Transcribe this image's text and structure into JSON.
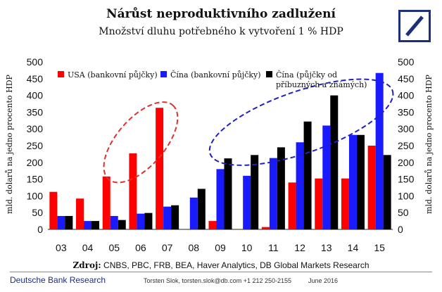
{
  "header": {
    "title": "Nárůst neproduktivního zadlužení",
    "subtitle": "Množství dluhu potřebného k vytvoření 1 % HDP"
  },
  "logo": {
    "icon": "deutsche-bank-logo-icon",
    "color": "#1c2f7a"
  },
  "chart_data": {
    "type": "bar",
    "title": "Nárůst neproduktivního zadlužení",
    "subtitle": "Množství dluhu potřebného k vytvoření 1 % HDP",
    "categories": [
      "03",
      "04",
      "05",
      "06",
      "07",
      "08",
      "09",
      "10",
      "11",
      "12",
      "13",
      "14",
      "15"
    ],
    "ylabel": "mld. dolarů na jedno procento HDP",
    "ylabel_right": "mld. dolarů na jedno procento HDP",
    "ylim": [
      0,
      500
    ],
    "yticks": [
      0,
      50,
      100,
      150,
      200,
      250,
      300,
      350,
      400,
      450,
      500
    ],
    "grid": false,
    "legend_position": "top-left",
    "series": [
      {
        "name": "USA (bankovní půjčky)",
        "color": "#ff0000",
        "values": [
          112,
          92,
          158,
          227,
          363,
          null,
          25,
          null,
          7,
          140,
          152,
          152,
          250
        ]
      },
      {
        "name": "Čína (bankovní půjčky)",
        "color": "#1a1aff",
        "values": [
          40,
          25,
          40,
          47,
          68,
          95,
          180,
          160,
          213,
          260,
          310,
          282,
          467
        ]
      },
      {
        "name": "Čína (půjčky od příbuzných a známých)",
        "color": "#000000",
        "values": [
          40,
          25,
          28,
          49,
          72,
          121,
          212,
          222,
          245,
          322,
          400,
          282,
          222
        ]
      }
    ],
    "annotations": [
      {
        "type": "dashed-ellipse",
        "color": "#e03030",
        "around": [
          "05",
          "06",
          "07"
        ]
      },
      {
        "type": "dashed-ellipse",
        "color": "#2020c0",
        "around": [
          "09",
          "10",
          "11",
          "12",
          "13",
          "14",
          "15"
        ]
      }
    ]
  },
  "source": {
    "label": "Zdroj:",
    "text": " CNBS, PBC, FRB, BEA, Haver Analytics, DB Global Markets Research"
  },
  "footer": {
    "brand": "Deutsche Bank Research",
    "author": "Torsten Slok, torsten.slok@db.com  +1 212 250-2155",
    "date": "June 2016"
  }
}
